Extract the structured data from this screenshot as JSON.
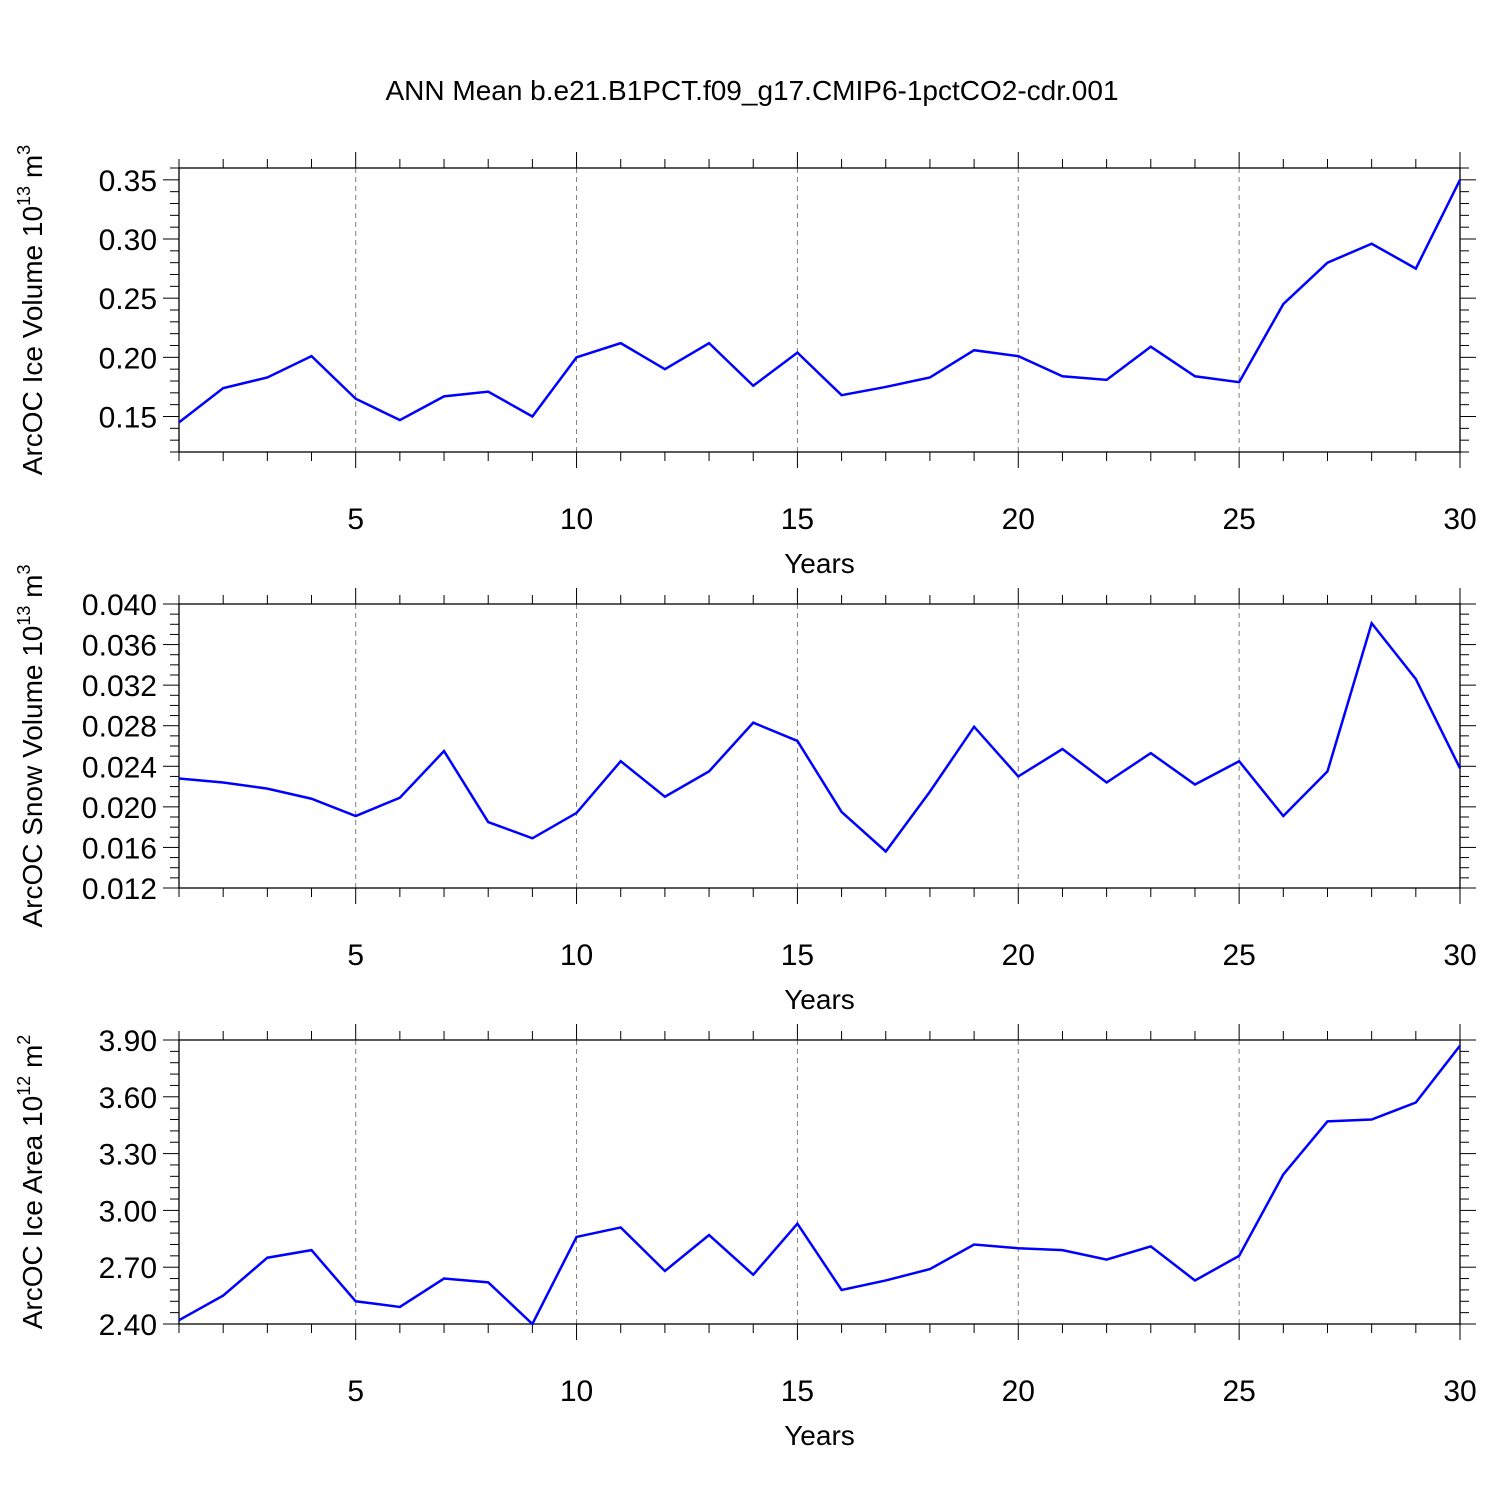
{
  "figure_title": "ANN Mean b.e21.B1PCT.f09_g17.CMIP6-1pctCO2-cdr.001",
  "chart_data": [
    {
      "type": "line",
      "xlabel": "Years",
      "ylabel": {
        "text": "ArcOC Ice Volume 10",
        "sup": "13",
        "unit": " m",
        "unit_sup": "3"
      },
      "xlim": [
        1,
        30
      ],
      "ylim": [
        0.12,
        0.36
      ],
      "xticks": [
        5,
        10,
        15,
        20,
        25,
        30
      ],
      "yticks": [
        0.15,
        0.2,
        0.25,
        0.3,
        0.35
      ],
      "ytick_labels": [
        "0.15",
        "0.20",
        "0.25",
        "0.30",
        "0.35"
      ],
      "x_minor_step": 1,
      "y_minor_step": 0.01,
      "grid": "dashed vertical at major x ticks",
      "line_color": "#0000ff",
      "x": [
        1,
        2,
        3,
        4,
        5,
        6,
        7,
        8,
        9,
        10,
        11,
        12,
        13,
        14,
        15,
        16,
        17,
        18,
        19,
        20,
        21,
        22,
        23,
        24,
        25,
        26,
        27,
        28,
        29,
        30
      ],
      "values": [
        0.145,
        0.174,
        0.183,
        0.201,
        0.165,
        0.147,
        0.167,
        0.171,
        0.15,
        0.2,
        0.212,
        0.19,
        0.212,
        0.176,
        0.204,
        0.168,
        0.175,
        0.183,
        0.206,
        0.201,
        0.184,
        0.181,
        0.209,
        0.184,
        0.179,
        0.245,
        0.28,
        0.296,
        0.275,
        0.35
      ]
    },
    {
      "type": "line",
      "xlabel": "Years",
      "ylabel": {
        "text": "ArcOC Snow Volume 10",
        "sup": "13",
        "unit": " m",
        "unit_sup": "3"
      },
      "xlim": [
        1,
        30
      ],
      "ylim": [
        0.012,
        0.04
      ],
      "xticks": [
        5,
        10,
        15,
        20,
        25,
        30
      ],
      "yticks": [
        0.012,
        0.016,
        0.02,
        0.024,
        0.028,
        0.032,
        0.036,
        0.04
      ],
      "ytick_labels": [
        "0.012",
        "0.016",
        "0.020",
        "0.024",
        "0.028",
        "0.032",
        "0.036",
        "0.040"
      ],
      "x_minor_step": 1,
      "y_minor_step": 0.001,
      "grid": "dashed vertical at major x ticks",
      "line_color": "#0000ff",
      "x": [
        1,
        2,
        3,
        4,
        5,
        6,
        7,
        8,
        9,
        10,
        11,
        12,
        13,
        14,
        15,
        16,
        17,
        18,
        19,
        20,
        21,
        22,
        23,
        24,
        25,
        26,
        27,
        28,
        29,
        30
      ],
      "values": [
        0.0228,
        0.0224,
        0.0218,
        0.0208,
        0.0191,
        0.0209,
        0.0255,
        0.0185,
        0.0169,
        0.0194,
        0.0245,
        0.021,
        0.0235,
        0.0283,
        0.0265,
        0.0195,
        0.0156,
        0.0215,
        0.0279,
        0.023,
        0.0257,
        0.0224,
        0.0253,
        0.0222,
        0.0245,
        0.0191,
        0.0235,
        0.0381,
        0.0326,
        0.0238
      ]
    },
    {
      "type": "line",
      "xlabel": "Years",
      "ylabel": {
        "text": "ArcOC Ice Area 10",
        "sup": "12",
        "unit": " m",
        "unit_sup": "2"
      },
      "xlim": [
        1,
        30
      ],
      "ylim": [
        2.4,
        3.9
      ],
      "xticks": [
        5,
        10,
        15,
        20,
        25,
        30
      ],
      "yticks": [
        2.4,
        2.7,
        3.0,
        3.3,
        3.6,
        3.9
      ],
      "ytick_labels": [
        "2.40",
        "2.70",
        "3.00",
        "3.30",
        "3.60",
        "3.90"
      ],
      "x_minor_step": 1,
      "y_minor_step": 0.06,
      "grid": "dashed vertical at major x ticks",
      "line_color": "#0000ff",
      "x": [
        1,
        2,
        3,
        4,
        5,
        6,
        7,
        8,
        9,
        10,
        11,
        12,
        13,
        14,
        15,
        16,
        17,
        18,
        19,
        20,
        21,
        22,
        23,
        24,
        25,
        26,
        27,
        28,
        29,
        30
      ],
      "values": [
        2.42,
        2.55,
        2.75,
        2.79,
        2.52,
        2.49,
        2.64,
        2.62,
        2.4,
        2.86,
        2.91,
        2.68,
        2.87,
        2.66,
        2.93,
        2.58,
        2.63,
        2.69,
        2.82,
        2.8,
        2.79,
        2.74,
        2.81,
        2.63,
        2.76,
        3.19,
        3.47,
        3.48,
        3.57,
        3.87
      ]
    }
  ]
}
